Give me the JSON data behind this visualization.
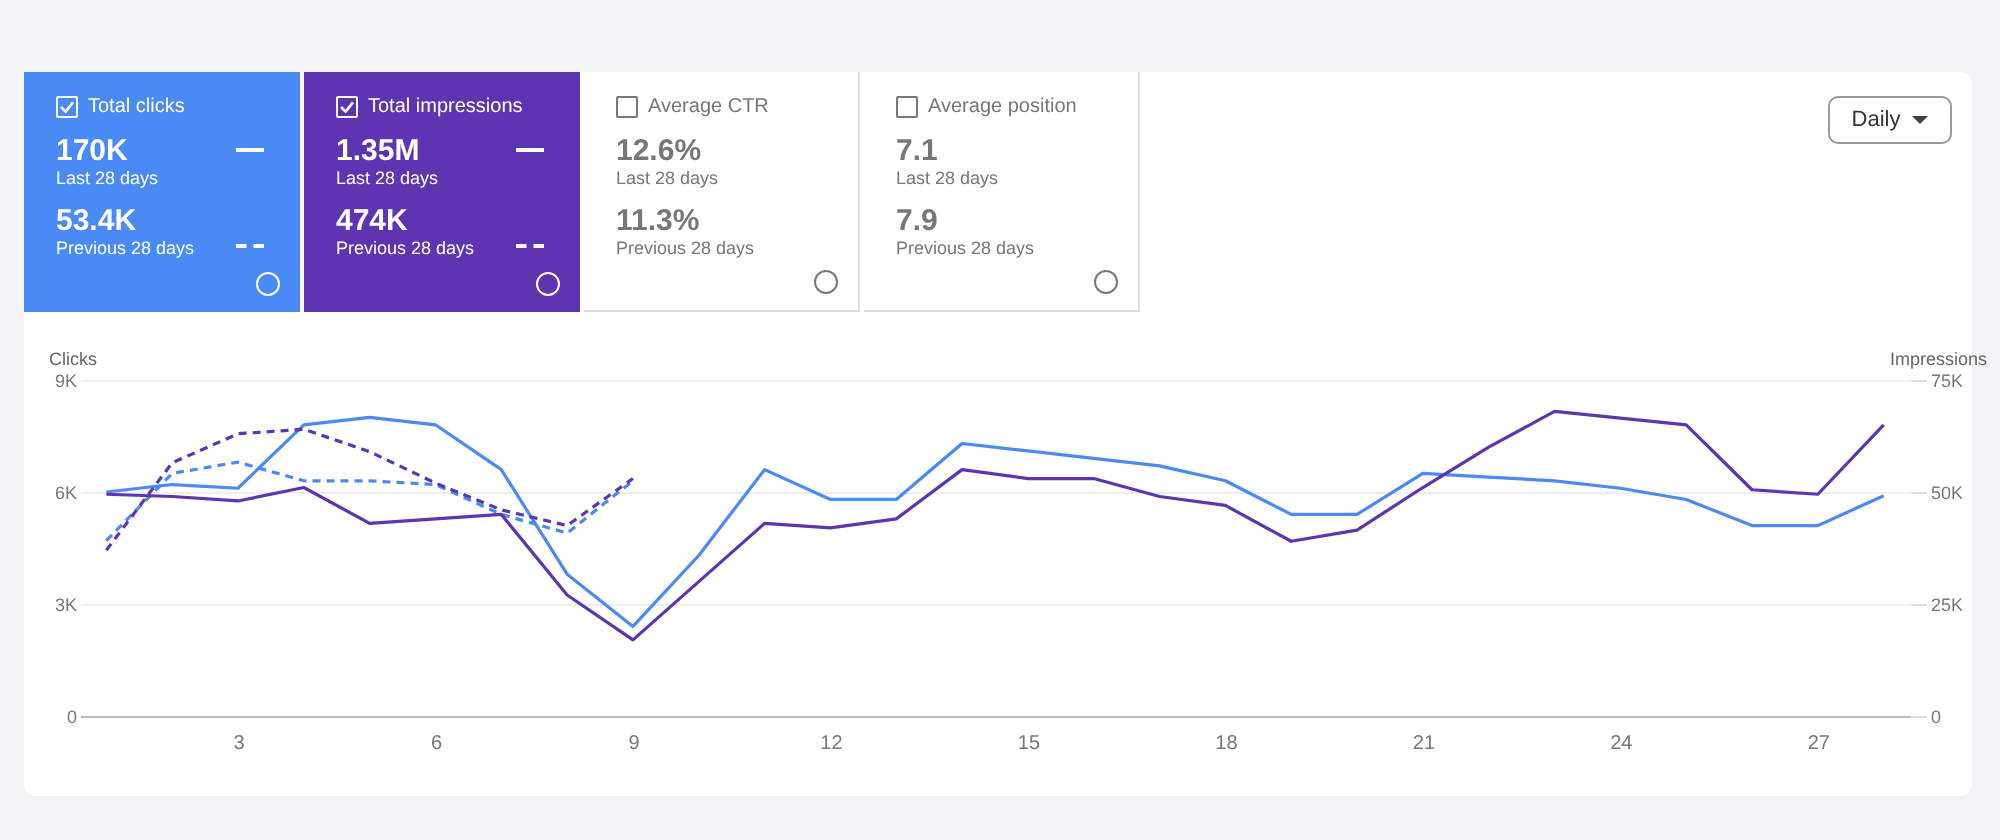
{
  "chart_data": {
    "type": "line",
    "ylabel": "Clicks",
    "y2label": "Impressions",
    "annotations": [
      "Total clicks",
      "170K",
      "Last 28 days",
      "53.4K",
      "Previous 28 days",
      "Total impressions",
      "1.35M",
      "Last 28 days",
      "474K",
      "Previous 28 days",
      "Average CTR",
      "12.6%",
      "Last 28 days",
      "11.3%",
      "Previous 28 days",
      "Average position",
      "7.1",
      "Last 28 days",
      "7.9",
      "Previous 28 days",
      "Daily"
    ],
    "x": [
      1,
      2,
      3,
      4,
      5,
      6,
      7,
      8,
      9,
      10,
      11,
      12,
      13,
      14,
      15,
      16,
      17,
      18,
      19,
      20,
      21,
      22,
      23,
      24,
      25,
      26,
      27,
      28
    ],
    "xlim": [
      0.6,
      28.4
    ],
    "xticks": [
      3,
      6,
      9,
      12,
      15,
      18,
      21,
      24,
      27
    ],
    "ylim": [
      0,
      9000
    ],
    "yticks": [
      {
        "value": 0,
        "label": "0"
      },
      {
        "value": 3000,
        "label": "3K"
      },
      {
        "value": 6000,
        "label": "6K"
      },
      {
        "value": 9000,
        "label": "9K"
      }
    ],
    "y2lim": [
      0,
      75000
    ],
    "y2ticks": [
      {
        "value": 0,
        "label": "0"
      },
      {
        "value": 25000,
        "label": "25K"
      },
      {
        "value": 50000,
        "label": "50K"
      },
      {
        "value": 75000,
        "label": "75K"
      }
    ],
    "grid": "y",
    "marker": "none",
    "series": [
      {
        "color": "#4a8af4",
        "line_style": "solid",
        "values": [
          6000,
          6200,
          6100,
          7800,
          8000,
          7800,
          6600,
          3800,
          2400,
          4300,
          6600,
          5800,
          5800,
          7300,
          7100,
          6900,
          6700,
          6300,
          5400,
          5400,
          6500,
          6400,
          6300,
          6100,
          5800,
          5100,
          5100,
          5900
        ]
      },
      {
        "color": "#5e35b1",
        "axis": "y2",
        "line_style": "solid",
        "values": [
          49500,
          49000,
          48000,
          51000,
          43000,
          44000,
          45000,
          27000,
          17000,
          30000,
          43000,
          42000,
          44000,
          55000,
          53000,
          53000,
          49000,
          47000,
          39000,
          41500,
          51000,
          60000,
          68000,
          66500,
          65000,
          50500,
          49500,
          65000
        ]
      },
      {
        "color": "#4a8af4",
        "line_style": "dashed",
        "values": [
          4700,
          6500,
          6800,
          6300,
          6300,
          6200,
          5400,
          4900,
          6300,
          null,
          null,
          null,
          null,
          null,
          null,
          null,
          null,
          null,
          null,
          null,
          null,
          null,
          null,
          null,
          null,
          null,
          null,
          null
        ]
      },
      {
        "color": "#5e35b1",
        "axis": "y2",
        "line_style": "dashed",
        "values": [
          37000,
          56500,
          63000,
          64000,
          59000,
          52000,
          46000,
          42500,
          53000,
          null,
          null,
          null,
          null,
          null,
          null,
          null,
          null,
          null,
          null,
          null,
          null,
          null,
          null,
          null,
          null,
          null,
          null,
          null
        ]
      }
    ]
  }
}
